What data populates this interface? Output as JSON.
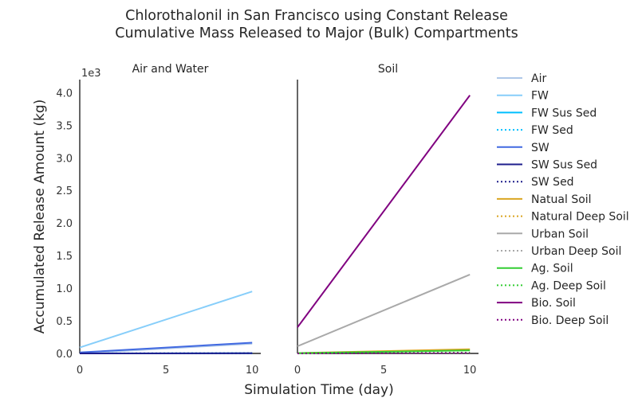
{
  "figure": {
    "title_line1": "Chlorothalonil in San Francisco using Constant Release",
    "title_line2": "Cumulative Mass Released to Major (Bulk) Compartments",
    "ylabel": "Accumulated Release Amount (kg)",
    "xlabel": "Simulation Time (day)"
  },
  "legend": [
    {
      "label": "Air",
      "color": "#aec7e8",
      "dash": "solid"
    },
    {
      "label": "FW",
      "color": "#87cefa",
      "dash": "solid"
    },
    {
      "label": "FW Sus Sed",
      "color": "#00bfff",
      "dash": "solid"
    },
    {
      "label": "FW Sed",
      "color": "#00bfff",
      "dash": "dotted"
    },
    {
      "label": "SW",
      "color": "#4169e1",
      "dash": "solid"
    },
    {
      "label": "SW Sus Sed",
      "color": "#1e1e8c",
      "dash": "solid"
    },
    {
      "label": "SW Sed",
      "color": "#1e1e8c",
      "dash": "dotted"
    },
    {
      "label": "Natual Soil",
      "color": "#daa520",
      "dash": "solid"
    },
    {
      "label": "Natural Deep Soil",
      "color": "#daa520",
      "dash": "dotted"
    },
    {
      "label": "Urban Soil",
      "color": "#a9a9a9",
      "dash": "solid"
    },
    {
      "label": "Urban Deep Soil",
      "color": "#a9a9a9",
      "dash": "dotted"
    },
    {
      "label": "Ag. Soil",
      "color": "#32cd32",
      "dash": "solid"
    },
    {
      "label": "Ag. Deep Soil",
      "color": "#32cd32",
      "dash": "dotted"
    },
    {
      "label": "Bio. Soil",
      "color": "#800080",
      "dash": "solid"
    },
    {
      "label": "Bio. Deep Soil",
      "color": "#800080",
      "dash": "dotted"
    }
  ],
  "chart_data": [
    {
      "type": "line",
      "title": "Air and Water",
      "x": [
        0,
        10
      ],
      "xticks": [
        0,
        5,
        10
      ],
      "xlim": [
        0,
        10.5
      ],
      "ylim": [
        0,
        4200
      ],
      "yticks": [
        0,
        500,
        1000,
        1500,
        2000,
        2500,
        3000,
        3500,
        4000
      ],
      "ytick_labels": [
        "0.0",
        "0.5",
        "1.0",
        "1.5",
        "2.0",
        "2.5",
        "3.0",
        "3.5",
        "4.0"
      ],
      "y_multiplier": "1e3",
      "series": [
        {
          "name": "Air",
          "color": "#aec7e8",
          "dash": "solid",
          "values": [
            0,
            150
          ]
        },
        {
          "name": "FW",
          "color": "#87cefa",
          "dash": "solid",
          "values": [
            90,
            950
          ]
        },
        {
          "name": "FW Sus Sed",
          "color": "#00bfff",
          "dash": "solid",
          "values": [
            0,
            3
          ]
        },
        {
          "name": "FW Sed",
          "color": "#00bfff",
          "dash": "dotted",
          "values": [
            0,
            5
          ]
        },
        {
          "name": "SW",
          "color": "#4169e1",
          "dash": "solid",
          "values": [
            15,
            165
          ]
        },
        {
          "name": "SW Sus Sed",
          "color": "#1e1e8c",
          "dash": "solid",
          "values": [
            0,
            2
          ]
        },
        {
          "name": "SW Sed",
          "color": "#1e1e8c",
          "dash": "dotted",
          "values": [
            0,
            3
          ]
        }
      ]
    },
    {
      "type": "line",
      "title": "Soil",
      "x": [
        0,
        10
      ],
      "xticks": [
        0,
        5,
        10
      ],
      "xlim": [
        0,
        10.5
      ],
      "ylim": [
        0,
        4200
      ],
      "series": [
        {
          "name": "Natual Soil",
          "color": "#daa520",
          "dash": "solid",
          "values": [
            5,
            65
          ]
        },
        {
          "name": "Natural Deep Soil",
          "color": "#daa520",
          "dash": "dotted",
          "values": [
            0,
            10
          ]
        },
        {
          "name": "Urban Soil",
          "color": "#a9a9a9",
          "dash": "solid",
          "values": [
            110,
            1210
          ]
        },
        {
          "name": "Urban Deep Soil",
          "color": "#a9a9a9",
          "dash": "dotted",
          "values": [
            0,
            12
          ]
        },
        {
          "name": "Ag. Soil",
          "color": "#32cd32",
          "dash": "solid",
          "values": [
            5,
            45
          ]
        },
        {
          "name": "Ag. Deep Soil",
          "color": "#32cd32",
          "dash": "dotted",
          "values": [
            0,
            8
          ]
        },
        {
          "name": "Bio. Soil",
          "color": "#800080",
          "dash": "solid",
          "values": [
            400,
            3960
          ]
        },
        {
          "name": "Bio. Deep Soil",
          "color": "#800080",
          "dash": "dotted",
          "values": [
            0,
            6
          ]
        }
      ]
    }
  ]
}
